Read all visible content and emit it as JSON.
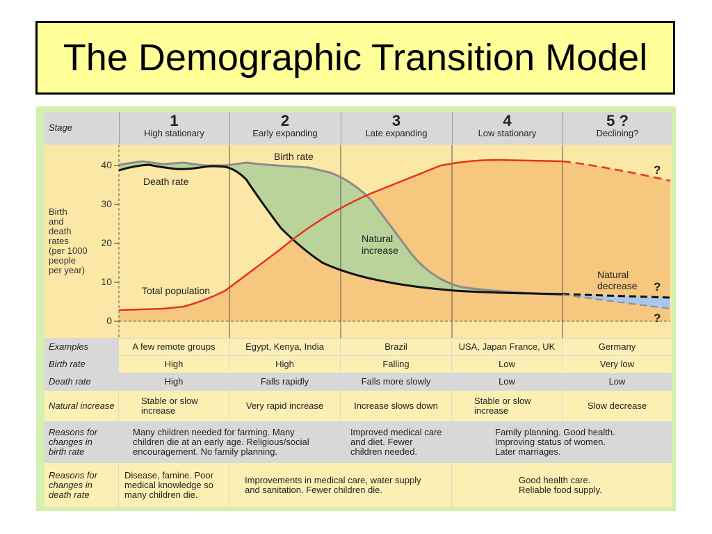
{
  "title": "The Demographic Transition Model",
  "stage_header": "Stage",
  "stages": [
    {
      "number": "1",
      "name": "High stationary"
    },
    {
      "number": "2",
      "name": "Early expanding"
    },
    {
      "number": "3",
      "name": "Late expanding"
    },
    {
      "number": "4",
      "name": "Low stationary"
    },
    {
      "number": "5 ?",
      "name": "Declining?"
    }
  ],
  "y_axis": {
    "label_lines": [
      "Birth",
      "and",
      "death",
      "rates",
      "(per 1000",
      "people",
      "per year)"
    ],
    "ticks": [
      "40",
      "30",
      "20",
      "10",
      "0"
    ]
  },
  "graph_labels": {
    "birth_rate": "Birth rate",
    "death_rate": "Death rate",
    "total_population": "Total population",
    "natural_increase_lines": [
      "Natural",
      "increase"
    ],
    "natural_decrease_lines": [
      "Natural",
      "decrease"
    ],
    "question_mark": "?"
  },
  "colors": {
    "population_fill": "#f6c77e",
    "natural_increase_fill": "#b9d39a",
    "natural_decrease_fill": "#a6c8ee",
    "population_line": "#e8321c",
    "death_line": "#111111",
    "birth_line": "#8c8c8c",
    "graph_background": "#fbe7a6",
    "table_gray": "#d8d8d8",
    "table_yellow": "#fcefb4"
  },
  "table": {
    "rows": [
      {
        "label": "Examples",
        "cells": [
          "A few remote groups",
          "Egypt, Kenya, India",
          "Brazil",
          "USA, Japan France, UK",
          "Germany"
        ]
      },
      {
        "label": "Birth rate",
        "cells": [
          "High",
          "High",
          "Falling",
          "Low",
          "Very low"
        ]
      },
      {
        "label": "Death rate",
        "cells": [
          "High",
          "Falls rapidly",
          "Falls more slowly",
          "Low",
          "Low"
        ]
      },
      {
        "label": "Natural increase",
        "cells": [
          "Stable or slow increase",
          "Very rapid increase",
          "Increase slows down",
          "Stable or slow increase",
          "Slow decrease"
        ]
      }
    ],
    "birth_reasons": {
      "label": "Reasons for changes in birth rate",
      "stage12": "Many children needed for farming. Many children die at an early age. Religious/social encouragement. No family planning.",
      "stage3": "Improved medical care and diet. Fewer children needed.",
      "stage45": "Family planning. Good health. Improving status of women. Later marriages."
    },
    "death_reasons": {
      "label": "Reasons for changes in death rate",
      "stage1": "Disease, famine. Poor medical knowledge so many children die.",
      "stage23": "Improvements in medical care, water supply and sanitation. Fewer children die.",
      "stage45": "Good health care. Reliable food supply."
    }
  }
}
